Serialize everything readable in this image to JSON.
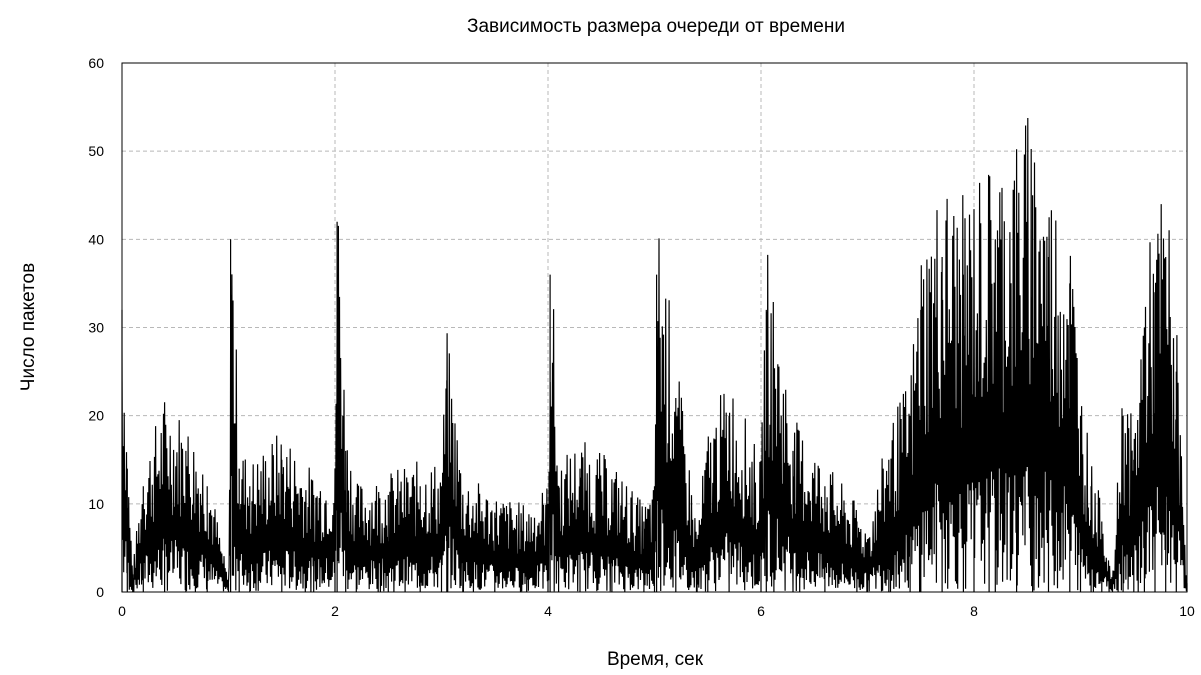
{
  "chart_data": {
    "type": "line",
    "title": "Зависимость размера очереди от времени",
    "xlabel": "Время, сек",
    "ylabel": "Число пакетов",
    "xlim": [
      0,
      10
    ],
    "ylim": [
      0,
      60
    ],
    "xticks": [
      "0",
      "2",
      "4",
      "6",
      "8",
      "10"
    ],
    "yticks": [
      "0",
      "10",
      "20",
      "30",
      "40",
      "50",
      "60"
    ],
    "grid": true,
    "legend": "none",
    "line_color": "#000000",
    "series": [
      {
        "x": [
          0,
          0.05,
          0.1,
          0.2,
          0.4,
          0.6,
          0.8,
          1.0,
          1.02,
          1.1,
          1.2,
          1.5,
          1.8,
          2.0,
          2.02,
          2.1,
          2.2,
          2.5,
          2.8,
          3.0,
          3.05,
          3.2,
          3.5,
          3.8,
          4.0,
          4.02,
          4.1,
          4.3,
          4.6,
          4.9,
          5.0,
          5.02,
          5.2,
          5.4,
          5.5,
          5.7,
          6.0,
          6.05,
          6.3,
          6.6,
          6.9,
          7.0,
          7.2,
          7.4,
          7.5,
          7.7,
          7.9,
          8.0,
          8.2,
          8.4,
          8.55,
          8.7,
          8.9,
          9.0,
          9.1,
          9.2,
          9.3,
          9.4,
          9.5,
          9.6,
          9.7,
          9.8,
          9.9,
          10.0
        ],
        "values": [
          32,
          14,
          2,
          12,
          18,
          16,
          12,
          1,
          40,
          14,
          12,
          15,
          11,
          12,
          42,
          16,
          10,
          11,
          12,
          12,
          24,
          11,
          9,
          8,
          10,
          36,
          12,
          14,
          12,
          8,
          10,
          36,
          22,
          6,
          15,
          20,
          12,
          32,
          16,
          12,
          8,
          6,
          15,
          20,
          32,
          38,
          36,
          38,
          40,
          42,
          45,
          38,
          35,
          20,
          12,
          8,
          1,
          20,
          15,
          30,
          34,
          38,
          25,
          1
        ]
      }
    ]
  }
}
